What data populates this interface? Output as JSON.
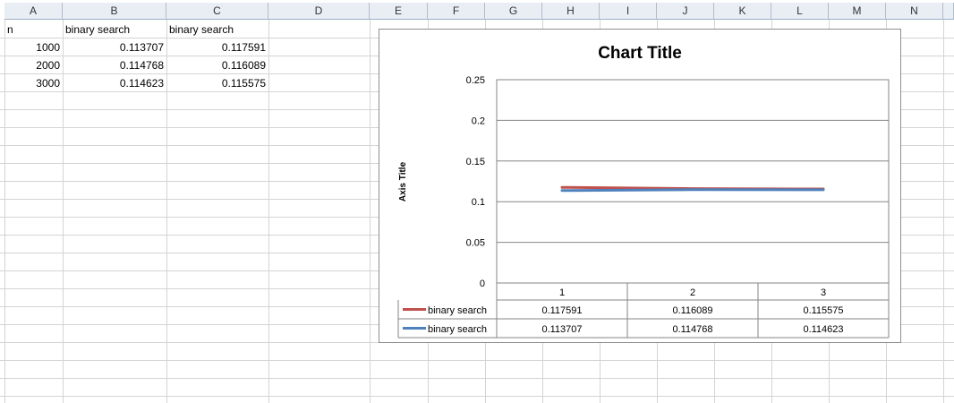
{
  "columns": [
    "A",
    "B",
    "C",
    "D",
    "E",
    "F",
    "G",
    "H",
    "I",
    "J",
    "K",
    "L",
    "M",
    "N"
  ],
  "cells": {
    "A1": "n",
    "B1": "binary search",
    "C1": "binary search",
    "A2": "1000",
    "B2": "0.113707",
    "C2": "0.117591",
    "A3": "2000",
    "B3": "0.114768",
    "C3": "0.116089",
    "A4": "3000",
    "B4": "0.114623",
    "C4": "0.115575"
  },
  "chart_data": {
    "type": "line",
    "title": "Chart Title",
    "ylabel": "Axis Title",
    "xlabel": "",
    "categories": [
      "1",
      "2",
      "3"
    ],
    "y_ticks": [
      "0.25",
      "0.2",
      "0.15",
      "0.1",
      "0.05",
      "0"
    ],
    "ylim": [
      0,
      0.25
    ],
    "grid": true,
    "legend": "data-table",
    "series": [
      {
        "name": "binary search",
        "color": "#c0504d",
        "values": [
          0.117591,
          0.116089,
          0.115575
        ],
        "labels": [
          "0.117591",
          "0.116089",
          "0.115575"
        ]
      },
      {
        "name": "binary search",
        "color": "#4f81bd",
        "values": [
          0.113707,
          0.114768,
          0.114623
        ],
        "labels": [
          "0.113707",
          "0.114768",
          "0.114623"
        ]
      }
    ]
  }
}
